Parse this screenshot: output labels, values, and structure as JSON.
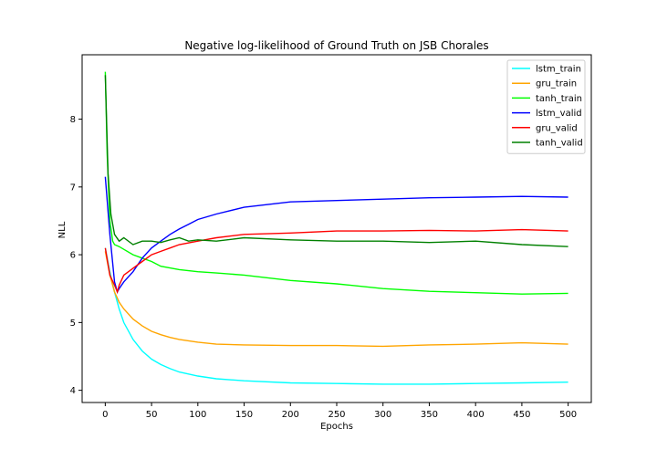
{
  "chart_data": {
    "type": "line",
    "title": "Negative log-likelihood of Ground Truth on JSB Chorales",
    "xlabel": "Epochs",
    "ylabel": "NLL",
    "xlim": [
      -25,
      525
    ],
    "ylim": [
      3.82,
      8.95
    ],
    "xticks": [
      0,
      50,
      100,
      150,
      200,
      250,
      300,
      350,
      400,
      450,
      500
    ],
    "yticks": [
      4,
      5,
      6,
      7,
      8
    ],
    "grid": false,
    "legend_position": "top-right",
    "series": [
      {
        "name": "lstm_train",
        "color": "#00ffff",
        "x": [
          0,
          5,
          10,
          15,
          20,
          30,
          40,
          50,
          60,
          70,
          80,
          100,
          120,
          150,
          200,
          250,
          300,
          350,
          400,
          450,
          500
        ],
        "y": [
          6.1,
          5.75,
          5.45,
          5.2,
          5.0,
          4.75,
          4.58,
          4.46,
          4.38,
          4.32,
          4.27,
          4.21,
          4.17,
          4.14,
          4.11,
          4.1,
          4.09,
          4.09,
          4.1,
          4.11,
          4.12
        ]
      },
      {
        "name": "gru_train",
        "color": "#ffa500",
        "x": [
          0,
          5,
          10,
          15,
          20,
          30,
          40,
          50,
          60,
          70,
          80,
          100,
          120,
          150,
          200,
          250,
          300,
          350,
          400,
          450,
          500
        ],
        "y": [
          6.05,
          5.7,
          5.45,
          5.3,
          5.2,
          5.05,
          4.95,
          4.87,
          4.82,
          4.78,
          4.75,
          4.71,
          4.68,
          4.67,
          4.66,
          4.66,
          4.65,
          4.67,
          4.68,
          4.7,
          4.68
        ]
      },
      {
        "name": "tanh_train",
        "color": "#00ff00",
        "x": [
          0,
          2,
          5,
          8,
          10,
          15,
          20,
          30,
          40,
          50,
          60,
          80,
          100,
          120,
          150,
          200,
          250,
          300,
          350,
          400,
          450,
          500
        ],
        "y": [
          8.7,
          7.5,
          6.5,
          6.2,
          6.15,
          6.12,
          6.08,
          6.0,
          5.95,
          5.9,
          5.83,
          5.78,
          5.75,
          5.73,
          5.7,
          5.62,
          5.57,
          5.5,
          5.46,
          5.44,
          5.42,
          5.43
        ]
      },
      {
        "name": "lstm_valid",
        "color": "#0000ff",
        "x": [
          0,
          5,
          10,
          13,
          15,
          20,
          30,
          40,
          50,
          60,
          70,
          80,
          90,
          100,
          120,
          150,
          200,
          250,
          300,
          350,
          400,
          450,
          500
        ],
        "y": [
          7.15,
          6.3,
          5.6,
          5.45,
          5.5,
          5.6,
          5.75,
          5.95,
          6.1,
          6.2,
          6.3,
          6.38,
          6.45,
          6.52,
          6.6,
          6.7,
          6.78,
          6.8,
          6.82,
          6.84,
          6.85,
          6.86,
          6.85
        ]
      },
      {
        "name": "gru_valid",
        "color": "#ff0000",
        "x": [
          0,
          5,
          10,
          13,
          15,
          20,
          30,
          40,
          50,
          60,
          70,
          80,
          100,
          120,
          150,
          200,
          250,
          300,
          350,
          400,
          450,
          500
        ],
        "y": [
          6.1,
          5.7,
          5.55,
          5.45,
          5.55,
          5.7,
          5.8,
          5.9,
          6.0,
          6.05,
          6.1,
          6.15,
          6.2,
          6.25,
          6.3,
          6.32,
          6.35,
          6.35,
          6.36,
          6.35,
          6.37,
          6.35
        ]
      },
      {
        "name": "tanh_valid",
        "color": "#008000",
        "x": [
          0,
          3,
          6,
          10,
          15,
          20,
          30,
          40,
          50,
          60,
          70,
          80,
          90,
          100,
          120,
          150,
          200,
          250,
          300,
          350,
          400,
          450,
          500
        ],
        "y": [
          8.65,
          7.2,
          6.6,
          6.3,
          6.2,
          6.25,
          6.15,
          6.2,
          6.2,
          6.18,
          6.22,
          6.25,
          6.2,
          6.22,
          6.2,
          6.25,
          6.22,
          6.2,
          6.2,
          6.18,
          6.2,
          6.15,
          6.12
        ]
      }
    ]
  }
}
